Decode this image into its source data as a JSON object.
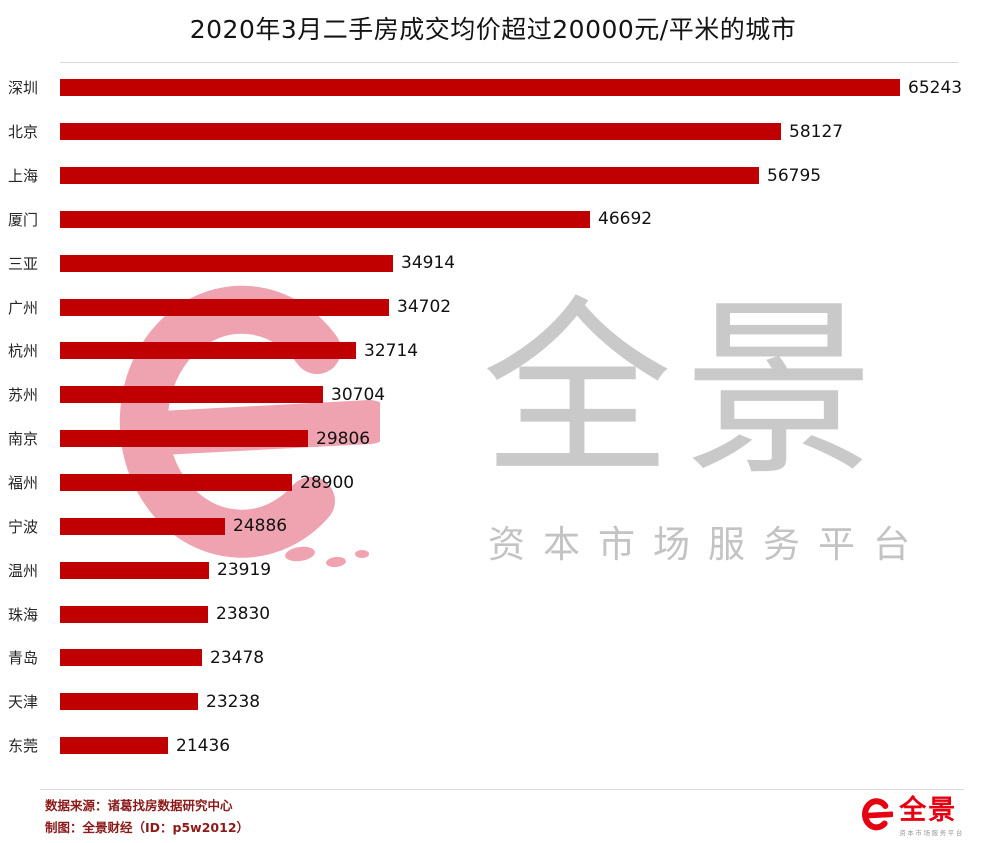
{
  "title": "2020年3月二手房成交均价超过20000元/平米的城市",
  "chart_data": {
    "type": "bar",
    "orientation": "horizontal",
    "title": "2020年3月二手房成交均价超过20000元/平米的城市",
    "categories": [
      "深圳",
      "北京",
      "上海",
      "厦门",
      "三亚",
      "广州",
      "杭州",
      "苏州",
      "南京",
      "福州",
      "宁波",
      "温州",
      "珠海",
      "青岛",
      "天津",
      "东莞"
    ],
    "values": [
      65243,
      58127,
      56795,
      46692,
      34914,
      34702,
      32714,
      30704,
      29806,
      28900,
      24886,
      23919,
      23830,
      23478,
      23238,
      21436
    ],
    "value_labels": true,
    "xlabel": "",
    "ylabel": "",
    "xlim": [
      15000,
      65243
    ],
    "grid": false,
    "legend": false,
    "bar_color": "#c00000"
  },
  "watermark": {
    "brand_text": "全景",
    "tagline": "资本市场服务平台"
  },
  "footer": {
    "source_line1": "数据来源：诸葛找房数据研究中心",
    "source_line2": "制图：全景财经（ID：p5w2012）",
    "logo_text": "全景",
    "logo_tagline": "资本市场服务平台"
  },
  "colors": {
    "bar": "#c00000",
    "source_text": "#8b1a1a",
    "watermark_text": "#c9c9c9",
    "watermark_pink": "#e04a66",
    "logo_red": "#e60012",
    "divider": "#d9d9d9"
  }
}
